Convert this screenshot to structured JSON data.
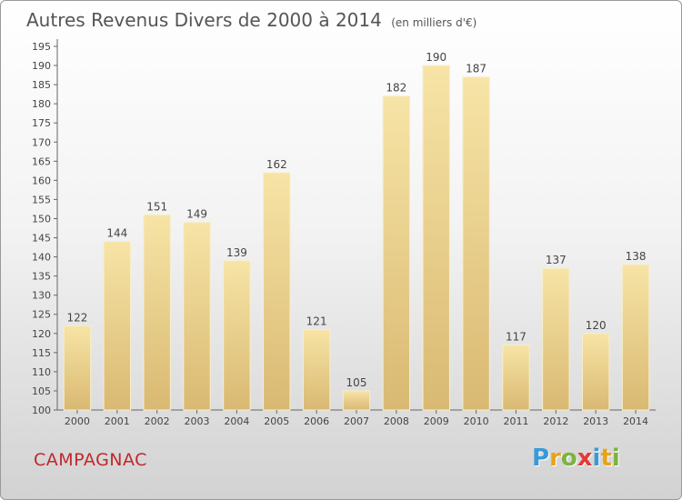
{
  "title": "Autres Revenus Divers de 2000 à 2014",
  "unit": "(en milliers d'€)",
  "commune": "CAMPAGNAC",
  "logo": {
    "letters": [
      "P",
      "r",
      "o",
      "x",
      "i",
      "t",
      "i"
    ],
    "colors": [
      "#3a9ad9",
      "#e8a317",
      "#7cb342",
      "#e53935",
      "#3a9ad9",
      "#e8a317",
      "#7cb342"
    ]
  },
  "colors": {
    "bar_light": "#f7e4a6",
    "bar_dark": "#d9b972",
    "commune": "#c0282d"
  },
  "chart_data": {
    "type": "bar",
    "categories": [
      "2000",
      "2001",
      "2002",
      "2003",
      "2004",
      "2005",
      "2006",
      "2007",
      "2008",
      "2009",
      "2010",
      "2011",
      "2012",
      "2013",
      "2014"
    ],
    "values": [
      122,
      144,
      151,
      149,
      139,
      162,
      121,
      105,
      182,
      190,
      187,
      117,
      137,
      120,
      138
    ],
    "data_labels": [
      "122",
      "144",
      "151",
      "149",
      "139",
      "162",
      "121",
      "105",
      "182",
      "190",
      "187",
      "117",
      "137",
      "120",
      "138"
    ],
    "ylim": [
      100,
      195
    ],
    "yticks": [
      100,
      105,
      110,
      115,
      120,
      125,
      130,
      135,
      140,
      145,
      150,
      155,
      160,
      165,
      170,
      175,
      180,
      185,
      190,
      195
    ],
    "grid": false
  }
}
